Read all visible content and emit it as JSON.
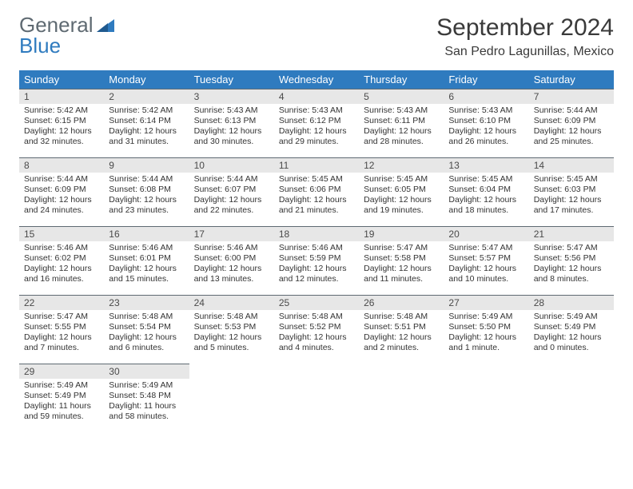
{
  "logo": {
    "general": "General",
    "blue": "Blue"
  },
  "title": "September 2024",
  "location": "San Pedro Lagunillas, Mexico",
  "colors": {
    "header_bg": "#2f7bbf",
    "header_fg": "#ffffff",
    "daynum_bg": "#e7e7e7",
    "daynum_border": "#5f6a72",
    "text": "#333333",
    "logo_gray": "#5f6a72",
    "logo_blue": "#2f7bbf",
    "page_bg": "#ffffff"
  },
  "day_headers": [
    "Sunday",
    "Monday",
    "Tuesday",
    "Wednesday",
    "Thursday",
    "Friday",
    "Saturday"
  ],
  "weeks": [
    [
      {
        "n": "1",
        "sr": "5:42 AM",
        "ss": "6:15 PM",
        "dl": "12 hours and 32 minutes."
      },
      {
        "n": "2",
        "sr": "5:42 AM",
        "ss": "6:14 PM",
        "dl": "12 hours and 31 minutes."
      },
      {
        "n": "3",
        "sr": "5:43 AM",
        "ss": "6:13 PM",
        "dl": "12 hours and 30 minutes."
      },
      {
        "n": "4",
        "sr": "5:43 AM",
        "ss": "6:12 PM",
        "dl": "12 hours and 29 minutes."
      },
      {
        "n": "5",
        "sr": "5:43 AM",
        "ss": "6:11 PM",
        "dl": "12 hours and 28 minutes."
      },
      {
        "n": "6",
        "sr": "5:43 AM",
        "ss": "6:10 PM",
        "dl": "12 hours and 26 minutes."
      },
      {
        "n": "7",
        "sr": "5:44 AM",
        "ss": "6:09 PM",
        "dl": "12 hours and 25 minutes."
      }
    ],
    [
      {
        "n": "8",
        "sr": "5:44 AM",
        "ss": "6:09 PM",
        "dl": "12 hours and 24 minutes."
      },
      {
        "n": "9",
        "sr": "5:44 AM",
        "ss": "6:08 PM",
        "dl": "12 hours and 23 minutes."
      },
      {
        "n": "10",
        "sr": "5:44 AM",
        "ss": "6:07 PM",
        "dl": "12 hours and 22 minutes."
      },
      {
        "n": "11",
        "sr": "5:45 AM",
        "ss": "6:06 PM",
        "dl": "12 hours and 21 minutes."
      },
      {
        "n": "12",
        "sr": "5:45 AM",
        "ss": "6:05 PM",
        "dl": "12 hours and 19 minutes."
      },
      {
        "n": "13",
        "sr": "5:45 AM",
        "ss": "6:04 PM",
        "dl": "12 hours and 18 minutes."
      },
      {
        "n": "14",
        "sr": "5:45 AM",
        "ss": "6:03 PM",
        "dl": "12 hours and 17 minutes."
      }
    ],
    [
      {
        "n": "15",
        "sr": "5:46 AM",
        "ss": "6:02 PM",
        "dl": "12 hours and 16 minutes."
      },
      {
        "n": "16",
        "sr": "5:46 AM",
        "ss": "6:01 PM",
        "dl": "12 hours and 15 minutes."
      },
      {
        "n": "17",
        "sr": "5:46 AM",
        "ss": "6:00 PM",
        "dl": "12 hours and 13 minutes."
      },
      {
        "n": "18",
        "sr": "5:46 AM",
        "ss": "5:59 PM",
        "dl": "12 hours and 12 minutes."
      },
      {
        "n": "19",
        "sr": "5:47 AM",
        "ss": "5:58 PM",
        "dl": "12 hours and 11 minutes."
      },
      {
        "n": "20",
        "sr": "5:47 AM",
        "ss": "5:57 PM",
        "dl": "12 hours and 10 minutes."
      },
      {
        "n": "21",
        "sr": "5:47 AM",
        "ss": "5:56 PM",
        "dl": "12 hours and 8 minutes."
      }
    ],
    [
      {
        "n": "22",
        "sr": "5:47 AM",
        "ss": "5:55 PM",
        "dl": "12 hours and 7 minutes."
      },
      {
        "n": "23",
        "sr": "5:48 AM",
        "ss": "5:54 PM",
        "dl": "12 hours and 6 minutes."
      },
      {
        "n": "24",
        "sr": "5:48 AM",
        "ss": "5:53 PM",
        "dl": "12 hours and 5 minutes."
      },
      {
        "n": "25",
        "sr": "5:48 AM",
        "ss": "5:52 PM",
        "dl": "12 hours and 4 minutes."
      },
      {
        "n": "26",
        "sr": "5:48 AM",
        "ss": "5:51 PM",
        "dl": "12 hours and 2 minutes."
      },
      {
        "n": "27",
        "sr": "5:49 AM",
        "ss": "5:50 PM",
        "dl": "12 hours and 1 minute."
      },
      {
        "n": "28",
        "sr": "5:49 AM",
        "ss": "5:49 PM",
        "dl": "12 hours and 0 minutes."
      }
    ],
    [
      {
        "n": "29",
        "sr": "5:49 AM",
        "ss": "5:49 PM",
        "dl": "11 hours and 59 minutes."
      },
      {
        "n": "30",
        "sr": "5:49 AM",
        "ss": "5:48 PM",
        "dl": "11 hours and 58 minutes."
      },
      null,
      null,
      null,
      null,
      null
    ]
  ],
  "labels": {
    "sunrise": "Sunrise:",
    "sunset": "Sunset:",
    "daylight": "Daylight:"
  }
}
